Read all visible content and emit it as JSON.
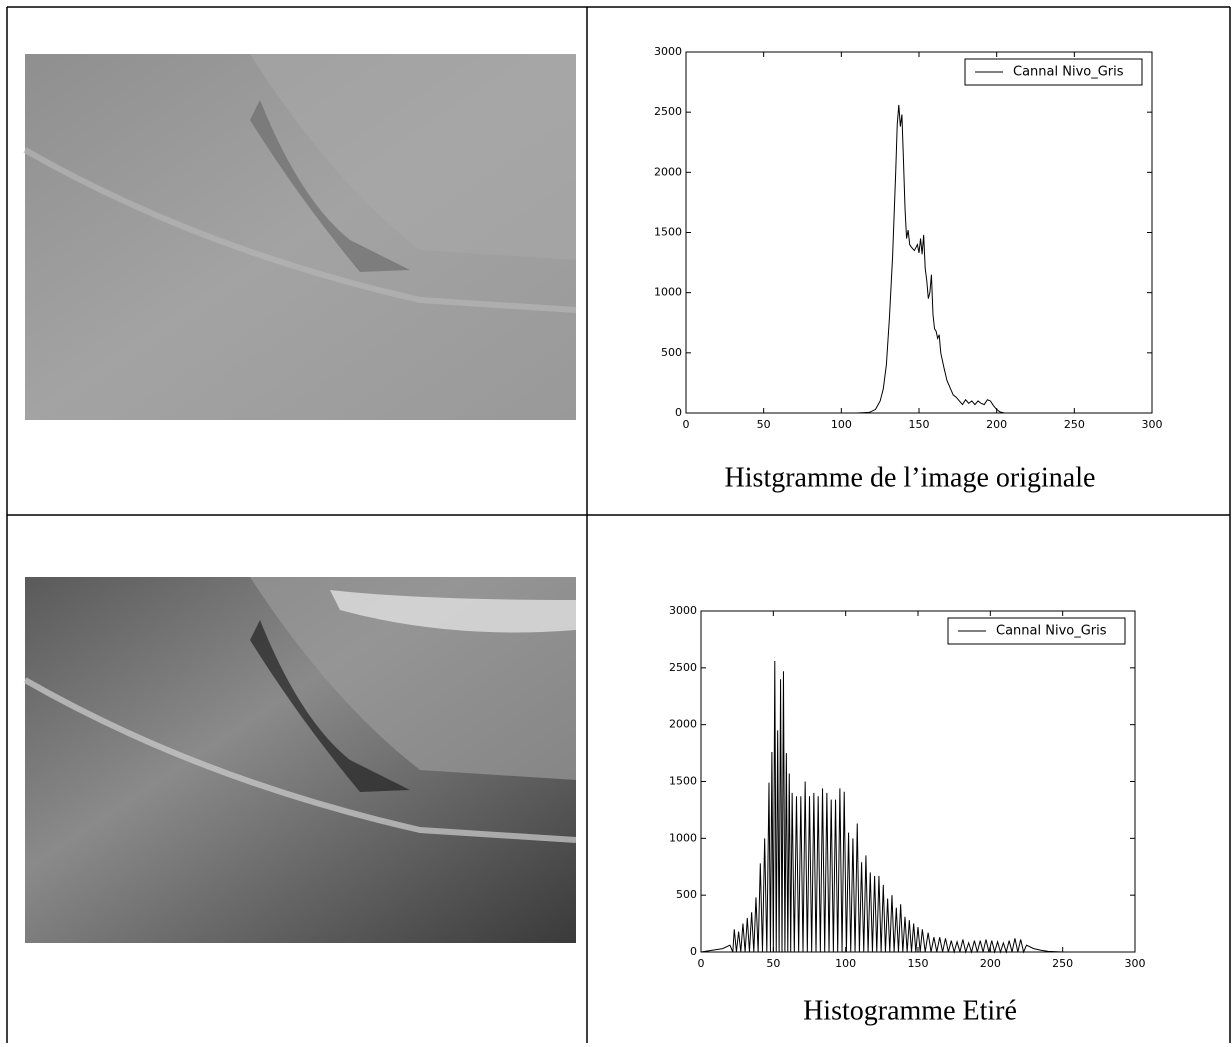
{
  "chart_data": [
    {
      "type": "line",
      "caption": "Histgramme de l’image originale",
      "x": [
        0,
        110,
        118,
        122,
        125,
        127,
        129,
        131,
        133,
        135,
        136,
        137,
        138,
        139,
        140,
        141,
        142,
        143,
        144,
        145,
        147,
        149,
        150,
        151,
        152,
        153,
        154,
        155,
        156,
        157,
        158,
        159,
        160,
        161,
        162,
        163,
        164,
        166,
        168,
        170,
        172,
        174,
        176,
        178,
        180,
        182,
        184,
        186,
        188,
        190,
        192,
        194,
        196,
        198,
        200,
        202,
        205,
        255
      ],
      "series": [
        {
          "name": "Cannal Nivo_Gris",
          "color": "#000000",
          "values": [
            0,
            0,
            5,
            30,
            100,
            200,
            400,
            800,
            1300,
            2000,
            2400,
            2560,
            2380,
            2480,
            2100,
            1700,
            1450,
            1520,
            1400,
            1380,
            1350,
            1400,
            1330,
            1450,
            1320,
            1480,
            1200,
            1100,
            950,
            1000,
            1150,
            820,
            700,
            680,
            620,
            650,
            500,
            380,
            270,
            210,
            150,
            130,
            100,
            70,
            110,
            80,
            100,
            70,
            100,
            80,
            70,
            110,
            100,
            60,
            30,
            10,
            0,
            0
          ]
        }
      ],
      "xlim": [
        0,
        300
      ],
      "ylim": [
        0,
        3000
      ],
      "xticks": [
        0,
        50,
        100,
        150,
        200,
        250,
        300
      ],
      "yticks": [
        0,
        500,
        1000,
        1500,
        2000,
        2500,
        3000
      ],
      "legend": "upper right"
    },
    {
      "type": "line",
      "caption": "Histogramme Etiré",
      "x": [
        0,
        10,
        15,
        20,
        22,
        23,
        24.5,
        26,
        27.5,
        29,
        30.5,
        32,
        33.5,
        35,
        36.5,
        38,
        39.5,
        41,
        42.5,
        44,
        45.5,
        47,
        48,
        49,
        50,
        51,
        52,
        53,
        54,
        55,
        56,
        57,
        58,
        59,
        60,
        61,
        62,
        63,
        64.5,
        66,
        67.5,
        69,
        70.5,
        72,
        73.5,
        75,
        76.5,
        78,
        79.5,
        81,
        82.5,
        84,
        85.5,
        87,
        88.5,
        90,
        91.5,
        93,
        94.5,
        96,
        97.5,
        99,
        100.5,
        102,
        103.5,
        105,
        106.5,
        108,
        109.5,
        111,
        112.5,
        114,
        115.5,
        117,
        118.5,
        120,
        121.5,
        123,
        124.5,
        126,
        127.5,
        129,
        130.5,
        132,
        133.5,
        135,
        136.5,
        138,
        139.5,
        141,
        142.5,
        144,
        145.5,
        147,
        148.5,
        150,
        151.5,
        153,
        155,
        157,
        159,
        161,
        163,
        165,
        167,
        169,
        171,
        173,
        175,
        177,
        179,
        181,
        183,
        185,
        187,
        189,
        191,
        193,
        195,
        197,
        199,
        201,
        203,
        205,
        207,
        209,
        211,
        213,
        215,
        217,
        219,
        221,
        223,
        225,
        230,
        235,
        240,
        250
      ],
      "series": [
        {
          "name": "Cannal Nivo_Gris",
          "color": "#000000",
          "values": [
            0,
            20,
            30,
            60,
            0,
            200,
            0,
            180,
            0,
            250,
            0,
            300,
            0,
            350,
            0,
            480,
            0,
            780,
            0,
            1000,
            0,
            1490,
            0,
            1760,
            0,
            2560,
            0,
            1950,
            0,
            2400,
            0,
            2470,
            0,
            1750,
            0,
            1570,
            0,
            1400,
            0,
            1370,
            0,
            1370,
            0,
            1500,
            0,
            1370,
            0,
            1400,
            0,
            1370,
            0,
            1440,
            0,
            1400,
            0,
            1340,
            0,
            1340,
            0,
            1440,
            0,
            1410,
            0,
            1050,
            0,
            1000,
            0,
            1130,
            0,
            790,
            0,
            850,
            0,
            700,
            0,
            670,
            0,
            670,
            0,
            590,
            0,
            470,
            0,
            500,
            0,
            390,
            0,
            420,
            0,
            310,
            0,
            280,
            0,
            250,
            0,
            220,
            0,
            200,
            0,
            170,
            0,
            130,
            0,
            130,
            0,
            120,
            0,
            100,
            0,
            90,
            0,
            110,
            0,
            80,
            0,
            100,
            0,
            100,
            0,
            110,
            0,
            100,
            0,
            90,
            0,
            80,
            0,
            100,
            0,
            120,
            0,
            110,
            0,
            60,
            30,
            15,
            5,
            0
          ]
        }
      ],
      "xlim": [
        0,
        300
      ],
      "ylim": [
        0,
        3000
      ],
      "xticks": [
        0,
        50,
        100,
        150,
        200,
        250,
        300
      ],
      "yticks": [
        0,
        500,
        1000,
        1500,
        2000,
        2500,
        3000
      ],
      "legend": "upper right"
    }
  ]
}
